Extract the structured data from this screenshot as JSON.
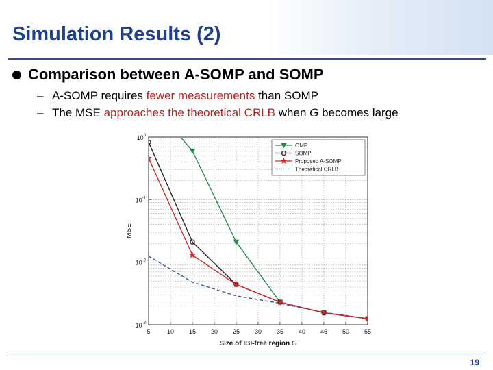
{
  "slide": {
    "title": "Simulation Results (2)",
    "bullet": "Comparison between A-SOMP and SOMP",
    "sub1": {
      "dash": "–",
      "a": "A-SOMP requires ",
      "b": "fewer measurements",
      "c": " than SOMP"
    },
    "sub2": {
      "dash": "–",
      "a": "The MSE ",
      "b": "approaches the theoretical CRLB",
      "c": " when ",
      "d": "G",
      "e": " becomes large"
    },
    "page_number": "19"
  },
  "chart_data": {
    "type": "line",
    "xlabel": "Size of IBI-free region",
    "xlabel_var": "G",
    "ylabel": "MSE",
    "yscale": "log",
    "xlim": [
      5,
      55
    ],
    "ylim": [
      0.001,
      1
    ],
    "x_ticks": [
      5,
      10,
      15,
      20,
      25,
      30,
      35,
      40,
      45,
      50,
      55
    ],
    "y_ticks": [
      {
        "value": 1,
        "base": "10",
        "exp": "0"
      },
      {
        "value": 0.1,
        "base": "10",
        "exp": "-1"
      },
      {
        "value": 0.01,
        "base": "10",
        "exp": "-2"
      },
      {
        "value": 0.001,
        "base": "10",
        "exp": "-3"
      }
    ],
    "grid": true,
    "legend_position": "top-right",
    "series": [
      {
        "name": "OMP",
        "color": "#2a8a4a",
        "marker": "triangle-down",
        "dash": "solid",
        "x": [
          5,
          15,
          25,
          35,
          45,
          55
        ],
        "y": [
          4,
          0.6,
          0.021,
          0.0023,
          0.00155,
          0.00125
        ]
      },
      {
        "name": "SOMP",
        "color": "#222222",
        "marker": "circle",
        "dash": "solid",
        "x": [
          5,
          15,
          25,
          35,
          45,
          55
        ],
        "y": [
          0.83,
          0.021,
          0.0044,
          0.0023,
          0.00155,
          0.00125
        ]
      },
      {
        "name": "Proposed A-SOMP",
        "color": "#d02828",
        "marker": "star",
        "dash": "solid",
        "x": [
          5,
          15,
          25,
          35,
          45,
          55
        ],
        "y": [
          0.46,
          0.013,
          0.0044,
          0.0023,
          0.00155,
          0.00125
        ]
      },
      {
        "name": "Theoretical CRLB",
        "color": "#3355aa",
        "marker": "none",
        "dash": "dashed",
        "x": [
          5,
          15,
          25,
          35,
          45,
          55
        ],
        "y": [
          0.0125,
          0.0048,
          0.0029,
          0.0022,
          0.00158,
          0.00125
        ]
      }
    ]
  }
}
